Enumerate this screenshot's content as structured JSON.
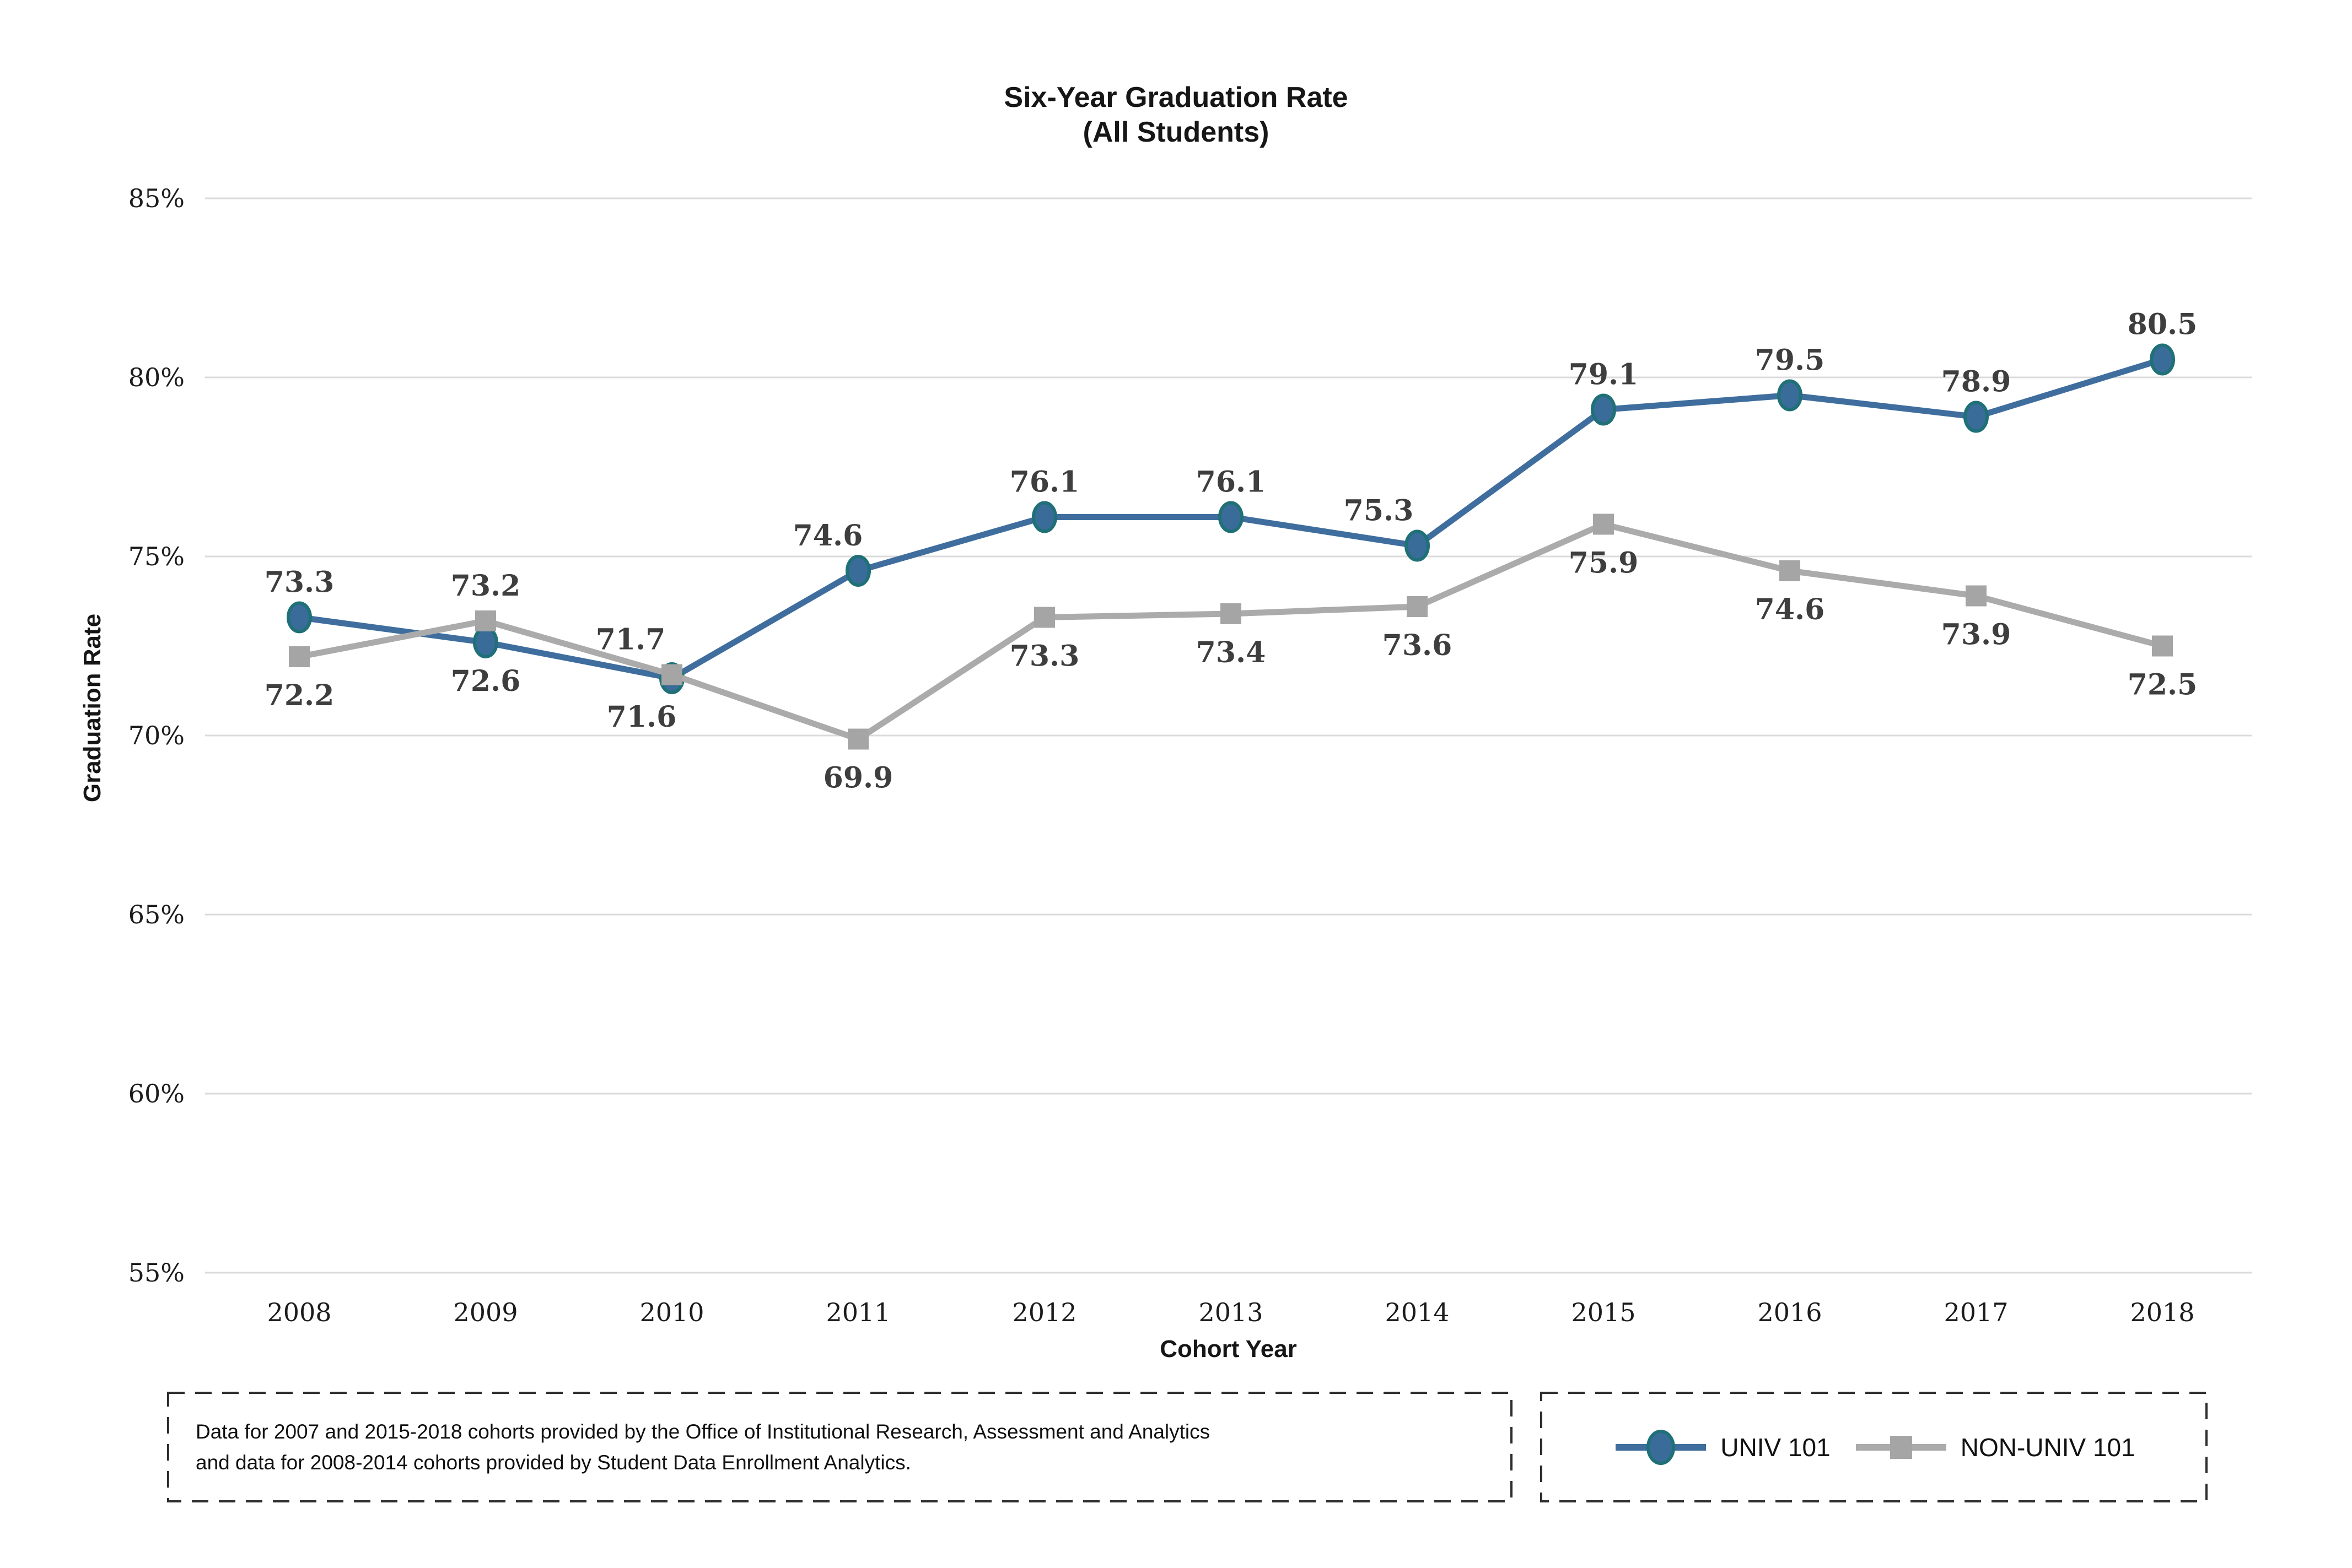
{
  "header": {
    "title_lines": [
      "Six-Year Graduation Rate",
      "(All Students)"
    ]
  },
  "chart_data": {
    "type": "line",
    "title": "Six-Year Graduation Rate (All Students)",
    "xlabel": "Cohort Year",
    "ylabel": "Graduation Rate",
    "x": [
      "2008",
      "2009",
      "2010",
      "2011",
      "2012",
      "2013",
      "2014",
      "2015",
      "2016",
      "2017",
      "2018"
    ],
    "ylim": [
      55,
      85
    ],
    "y_ticks": [
      85,
      80,
      75,
      70,
      65,
      60,
      55
    ],
    "y_tick_labels": [
      "85%",
      "80%",
      "75%",
      "70%",
      "65%",
      "60%",
      "55%"
    ],
    "grid": "horizontal",
    "legend_position": "bottom-right-box",
    "data_label_color": "#3E3E3E",
    "series": [
      {
        "name": "UNIV 101",
        "color": "#3F6E9E",
        "marker": "circle",
        "marker_fill": "#3A6C99",
        "marker_stroke": "#1F7077",
        "values": [
          73.3,
          72.6,
          71.6,
          74.6,
          76.1,
          76.1,
          75.3,
          79.1,
          79.5,
          78.9,
          80.5
        ],
        "label_positions": [
          "above",
          "below",
          "below",
          "above",
          "above",
          "above",
          "above",
          "above",
          "above",
          "above",
          "above"
        ]
      },
      {
        "name": "NON-UNIV 101",
        "color": "#ABABAB",
        "marker": "square",
        "marker_fill": "#A5A5A5",
        "marker_stroke": "#A5A5A5",
        "values": [
          72.2,
          73.2,
          71.7,
          69.9,
          73.3,
          73.4,
          73.6,
          75.9,
          74.6,
          73.9,
          72.5
        ],
        "label_positions": [
          "below",
          "above",
          "above",
          "below",
          "below",
          "below",
          "below",
          "below",
          "below",
          "below",
          "below"
        ]
      }
    ]
  },
  "footnote": {
    "text": "Data for 2007 and 2015-2018 cohorts provided by the Office of Institutional Research, Assessment and Analytics and data for 2008-2014 cohorts provided by Student Data Enrollment Analytics."
  },
  "colors": {
    "gridline": "#DBDBDB",
    "tick_text": "#1C1C1C",
    "title_text": "#161616",
    "dashed_border": "#2E2E2E"
  }
}
